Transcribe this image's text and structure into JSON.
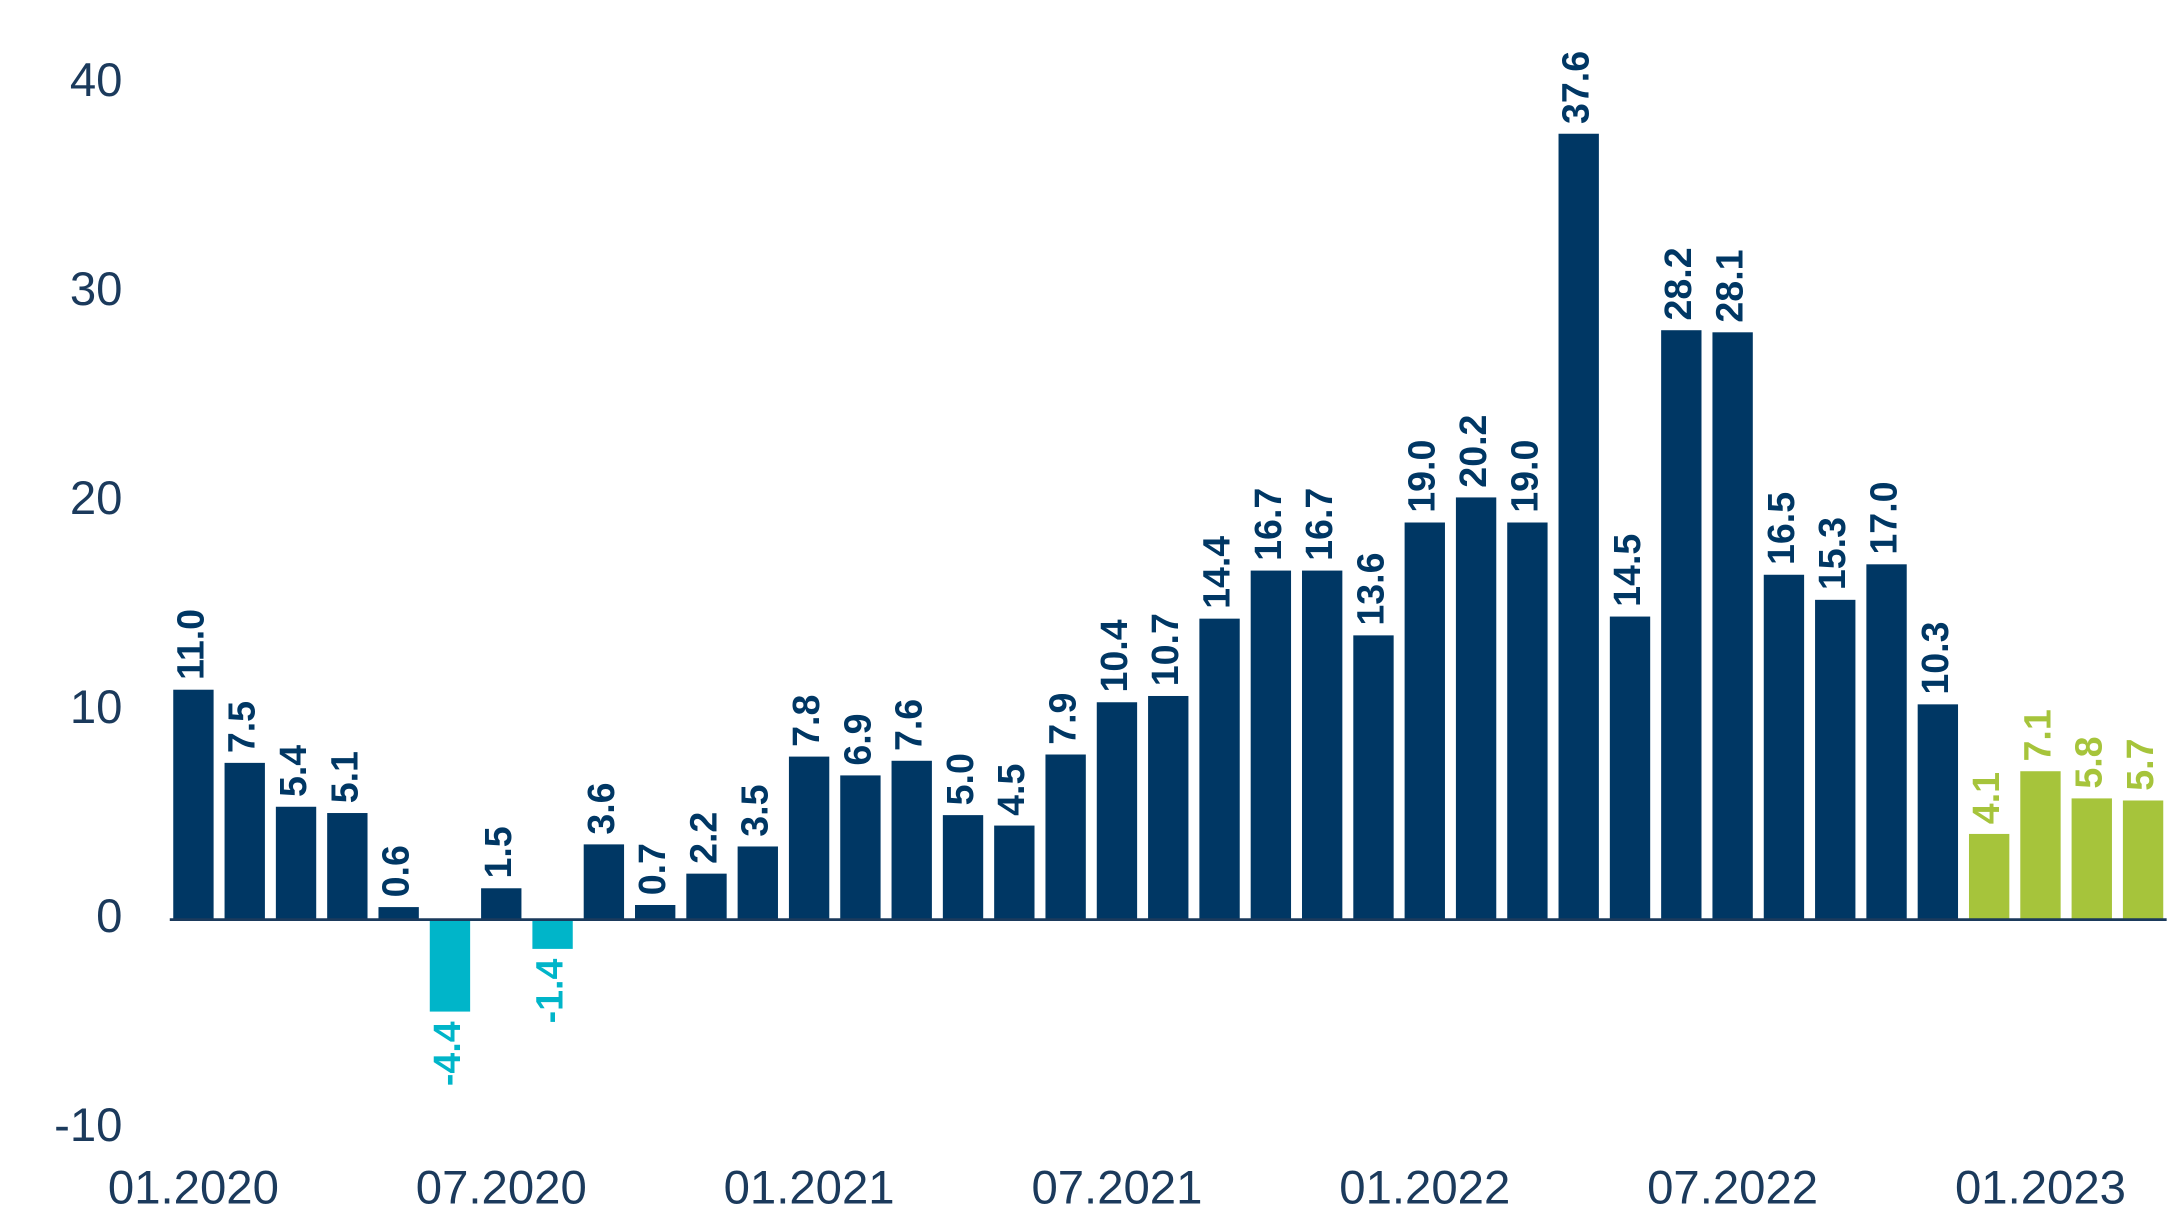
{
  "chart_data": {
    "type": "bar",
    "categories": [
      "01.2020",
      null,
      null,
      null,
      null,
      null,
      "07.2020",
      null,
      null,
      null,
      null,
      null,
      "01.2021",
      null,
      null,
      null,
      null,
      null,
      "07.2021",
      null,
      null,
      null,
      null,
      null,
      "01.2022",
      null,
      null,
      null,
      null,
      null,
      "07.2022",
      null,
      null,
      null,
      null,
      null,
      "01.2023",
      null,
      null
    ],
    "values": [
      11.0,
      7.5,
      5.4,
      5.1,
      0.6,
      -4.4,
      1.5,
      -1.4,
      3.6,
      0.7,
      2.2,
      3.5,
      7.8,
      6.9,
      7.6,
      5.0,
      4.5,
      7.9,
      10.4,
      10.7,
      14.4,
      16.7,
      16.7,
      13.6,
      19.0,
      20.2,
      19.0,
      37.6,
      14.5,
      28.2,
      28.1,
      16.5,
      15.3,
      17.0,
      10.3,
      4.1,
      7.1,
      5.8,
      5.7
    ],
    "value_labels": [
      "11.0",
      "7.5",
      "5.4",
      "5.1",
      "0.6",
      "-4.4",
      "1.5",
      "-1.4",
      "3.6",
      "0.7",
      "2.2",
      "3.5",
      "7.8",
      "6.9",
      "7.6",
      "5.0",
      "4.5",
      "7.9",
      "10.4",
      "10.7",
      "14.4",
      "16.7",
      "16.7",
      "13.6",
      "19.0",
      "20.2",
      "19.0",
      "37.6",
      "14.5",
      "28.2",
      "28.1",
      "16.5",
      "15.3",
      "17.0",
      "10.3",
      "4.1",
      "7.1",
      "5.8",
      "5.7"
    ],
    "colors": [
      "#003764",
      "#003764",
      "#003764",
      "#003764",
      "#003764",
      "#00b5c9",
      "#003764",
      "#00b5c9",
      "#003764",
      "#003764",
      "#003764",
      "#003764",
      "#003764",
      "#003764",
      "#003764",
      "#003764",
      "#003764",
      "#003764",
      "#003764",
      "#003764",
      "#003764",
      "#003764",
      "#003764",
      "#003764",
      "#003764",
      "#003764",
      "#003764",
      "#003764",
      "#003764",
      "#003764",
      "#003764",
      "#003764",
      "#003764",
      "#003764",
      "#003764",
      "#a6c43b",
      "#a6c43b",
      "#a6c43b",
      "#a6c43b"
    ],
    "ylim": [
      -10,
      40
    ],
    "yticks": [
      -10,
      0,
      10,
      20,
      30,
      40
    ],
    "grid": false
  }
}
